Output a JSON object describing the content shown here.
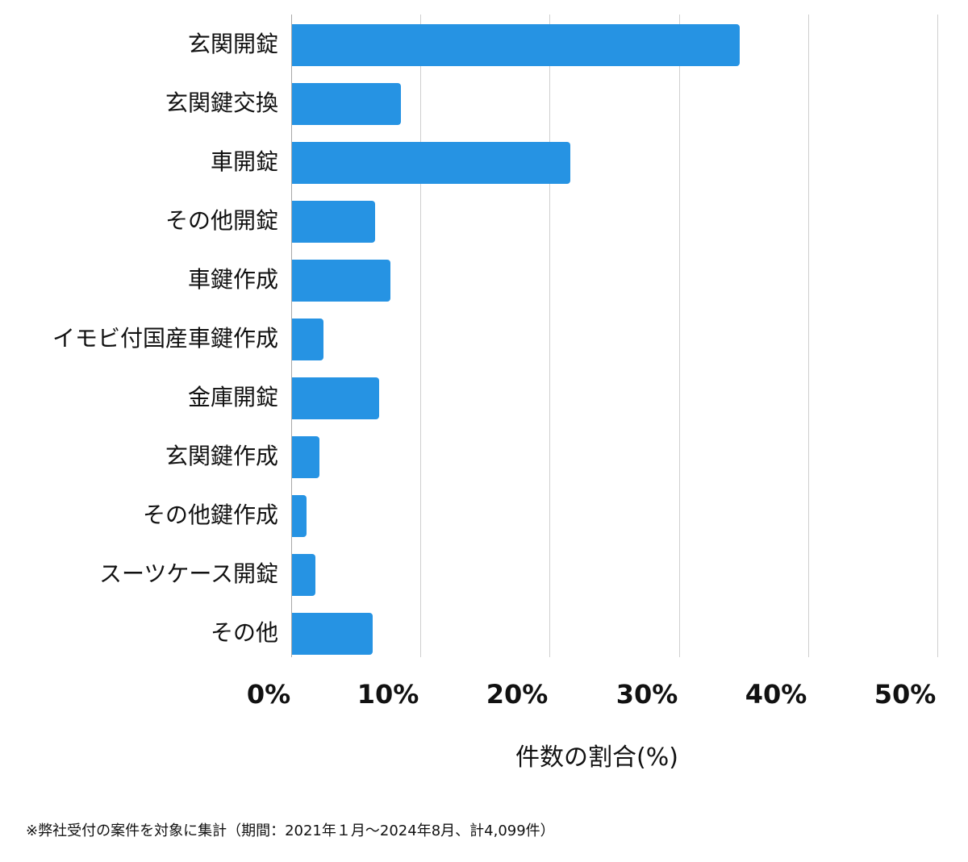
{
  "chart_data": {
    "type": "bar",
    "orientation": "horizontal",
    "title": "",
    "xlabel": "件数の割合(%)",
    "ylabel": "",
    "xlim": [
      0,
      50
    ],
    "x_ticks": [
      "0%",
      "10%",
      "20%",
      "30%",
      "40%",
      "50%"
    ],
    "grid": true,
    "legend": null,
    "bar_color": "#2693e3",
    "categories": [
      "玄関開錠",
      "玄関鍵交換",
      "車開錠",
      "その他開錠",
      "車鍵作成",
      "イモビ付国産車鍵作成",
      "金庫開錠",
      "玄関鍵作成",
      "その他鍵作成",
      "スーツケース開錠",
      "その他"
    ],
    "values": [
      34.7,
      8.5,
      21.6,
      6.5,
      7.7,
      2.5,
      6.8,
      2.2,
      1.2,
      1.9,
      6.3
    ],
    "unit": "%"
  },
  "footnote": "※弊社受付の案件を対象に集計（期間：2021年１月～2024年8月、計4,099件）"
}
